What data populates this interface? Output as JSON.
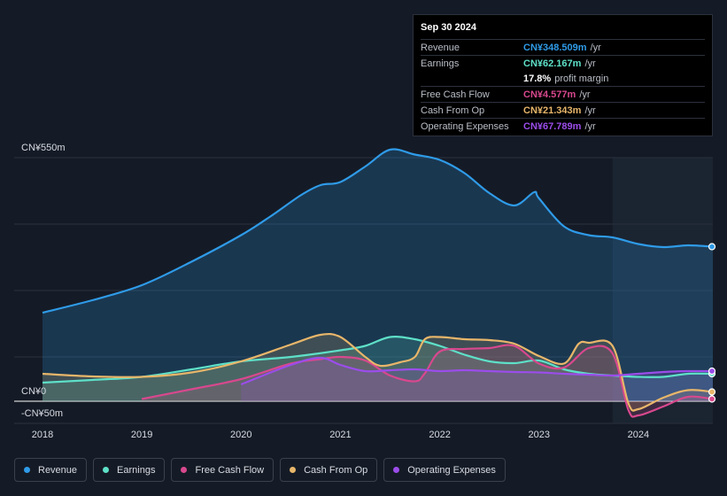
{
  "chart_data": {
    "type": "area",
    "title": "",
    "y_axis": {
      "top_label": "CN¥550m",
      "zero_label": "CN¥0",
      "bottom_label": "-CN¥50m",
      "ylim": [
        -50,
        550
      ]
    },
    "x_ticks": [
      "2018",
      "2019",
      "2020",
      "2021",
      "2022",
      "2023",
      "2024"
    ],
    "x_tick_values": [
      2018,
      2019,
      2020,
      2021,
      2022,
      2023,
      2024
    ],
    "xlim": [
      2017.7,
      2024.75
    ],
    "forecast_start": 2023.74,
    "series": [
      {
        "name": "Revenue",
        "color": "#2f9be8",
        "fill": true,
        "points": [
          [
            2018.0,
            200
          ],
          [
            2018.5,
            228
          ],
          [
            2019.0,
            262
          ],
          [
            2019.5,
            315
          ],
          [
            2020.0,
            375
          ],
          [
            2020.3,
            418
          ],
          [
            2020.6,
            465
          ],
          [
            2020.8,
            488
          ],
          [
            2021.0,
            495
          ],
          [
            2021.25,
            530
          ],
          [
            2021.5,
            568
          ],
          [
            2021.75,
            557
          ],
          [
            2022.0,
            545
          ],
          [
            2022.25,
            515
          ],
          [
            2022.5,
            470
          ],
          [
            2022.75,
            442
          ],
          [
            2022.95,
            472
          ],
          [
            2023.0,
            458
          ],
          [
            2023.25,
            395
          ],
          [
            2023.5,
            375
          ],
          [
            2023.74,
            370
          ],
          [
            2024.0,
            355
          ],
          [
            2024.25,
            348
          ],
          [
            2024.5,
            352
          ],
          [
            2024.75,
            349
          ]
        ]
      },
      {
        "name": "Earnings",
        "color": "#5ee0c8",
        "fill": true,
        "points": [
          [
            2018.0,
            42
          ],
          [
            2018.5,
            48
          ],
          [
            2019.0,
            55
          ],
          [
            2019.5,
            72
          ],
          [
            2020.0,
            90
          ],
          [
            2020.5,
            100
          ],
          [
            2021.0,
            115
          ],
          [
            2021.25,
            125
          ],
          [
            2021.5,
            145
          ],
          [
            2021.75,
            140
          ],
          [
            2022.0,
            125
          ],
          [
            2022.25,
            105
          ],
          [
            2022.5,
            90
          ],
          [
            2022.75,
            86
          ],
          [
            2023.0,
            92
          ],
          [
            2023.25,
            72
          ],
          [
            2023.5,
            62
          ],
          [
            2023.74,
            58
          ],
          [
            2024.0,
            55
          ],
          [
            2024.25,
            55
          ],
          [
            2024.5,
            62
          ],
          [
            2024.75,
            62
          ]
        ]
      },
      {
        "name": "Free Cash Flow",
        "color": "#d8488e",
        "fill": true,
        "points": [
          [
            2019.0,
            5
          ],
          [
            2019.5,
            27
          ],
          [
            2020.0,
            50
          ],
          [
            2020.5,
            85
          ],
          [
            2020.8,
            95
          ],
          [
            2021.0,
            100
          ],
          [
            2021.25,
            92
          ],
          [
            2021.5,
            58
          ],
          [
            2021.75,
            45
          ],
          [
            2021.85,
            63
          ],
          [
            2022.0,
            112
          ],
          [
            2022.25,
            118
          ],
          [
            2022.5,
            120
          ],
          [
            2022.75,
            125
          ],
          [
            2023.0,
            85
          ],
          [
            2023.25,
            76
          ],
          [
            2023.5,
            120
          ],
          [
            2023.74,
            108
          ],
          [
            2023.9,
            -20
          ],
          [
            2024.0,
            -32
          ],
          [
            2024.25,
            -12
          ],
          [
            2024.5,
            10
          ],
          [
            2024.75,
            5
          ]
        ]
      },
      {
        "name": "Cash From Op",
        "color": "#e8b66a",
        "fill": true,
        "points": [
          [
            2018.0,
            62
          ],
          [
            2018.5,
            56
          ],
          [
            2019.0,
            55
          ],
          [
            2019.5,
            65
          ],
          [
            2020.0,
            90
          ],
          [
            2020.5,
            128
          ],
          [
            2020.8,
            150
          ],
          [
            2021.0,
            145
          ],
          [
            2021.25,
            100
          ],
          [
            2021.4,
            80
          ],
          [
            2021.6,
            88
          ],
          [
            2021.75,
            100
          ],
          [
            2021.85,
            140
          ],
          [
            2022.0,
            145
          ],
          [
            2022.25,
            140
          ],
          [
            2022.5,
            138
          ],
          [
            2022.75,
            130
          ],
          [
            2023.0,
            102
          ],
          [
            2023.25,
            85
          ],
          [
            2023.4,
            130
          ],
          [
            2023.5,
            132
          ],
          [
            2023.74,
            125
          ],
          [
            2023.9,
            -5
          ],
          [
            2024.0,
            -18
          ],
          [
            2024.25,
            8
          ],
          [
            2024.5,
            25
          ],
          [
            2024.75,
            21
          ]
        ]
      },
      {
        "name": "Operating Expenses",
        "color": "#9b4dea",
        "fill": true,
        "points": [
          [
            2020.0,
            38
          ],
          [
            2020.5,
            82
          ],
          [
            2020.8,
            98
          ],
          [
            2021.0,
            82
          ],
          [
            2021.25,
            68
          ],
          [
            2021.5,
            70
          ],
          [
            2021.75,
            72
          ],
          [
            2022.0,
            68
          ],
          [
            2022.25,
            70
          ],
          [
            2022.5,
            68
          ],
          [
            2022.75,
            66
          ],
          [
            2023.0,
            65
          ],
          [
            2023.25,
            62
          ],
          [
            2023.5,
            60
          ],
          [
            2023.74,
            58
          ],
          [
            2024.0,
            62
          ],
          [
            2024.25,
            66
          ],
          [
            2024.5,
            68
          ],
          [
            2024.75,
            68
          ]
        ]
      }
    ]
  },
  "tooltip": {
    "date": "Sep 30 2024",
    "rows": [
      {
        "label": "Revenue",
        "value": "CN¥348.509m",
        "unit": "/yr",
        "color": "#2f9be8"
      },
      {
        "label": "Earnings",
        "value": "CN¥62.167m",
        "unit": "/yr",
        "color": "#5ee0c8"
      },
      {
        "label": "",
        "value": "17.8%",
        "unit": "profit margin",
        "color": "#ffffff"
      },
      {
        "label": "Free Cash Flow",
        "value": "CN¥4.577m",
        "unit": "/yr",
        "color": "#d8488e"
      },
      {
        "label": "Cash From Op",
        "value": "CN¥21.343m",
        "unit": "/yr",
        "color": "#e8b66a"
      },
      {
        "label": "Operating Expenses",
        "value": "CN¥67.789m",
        "unit": "/yr",
        "color": "#9b4dea"
      }
    ]
  },
  "legend": [
    {
      "label": "Revenue",
      "color": "#2f9be8"
    },
    {
      "label": "Earnings",
      "color": "#5ee0c8"
    },
    {
      "label": "Free Cash Flow",
      "color": "#d8488e"
    },
    {
      "label": "Cash From Op",
      "color": "#e8b66a"
    },
    {
      "label": "Operating Expenses",
      "color": "#9b4dea"
    }
  ]
}
